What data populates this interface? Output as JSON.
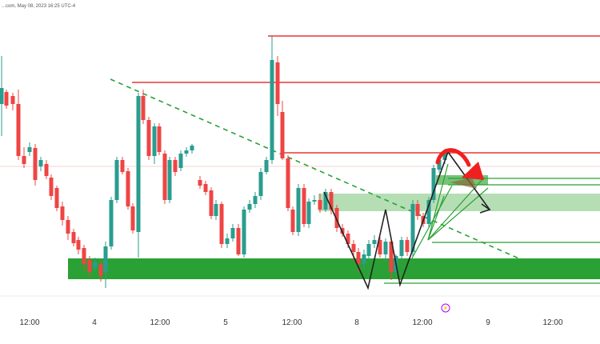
{
  "header": {
    "text": "...com, May 08, 2023 16:25 UTC-4"
  },
  "colors": {
    "up": "#2a9d8f",
    "down": "#ef4444",
    "zone": "#2aa134",
    "zone_light": "#a8d8a8",
    "resistance": "#e53935",
    "event": "#b000ff"
  },
  "event_marker": {
    "glyph": "⚡"
  },
  "chart_data": {
    "type": "candlestick",
    "x_tick_labels": [
      "12:00",
      "4",
      "12:00",
      "5",
      "12:00",
      "8",
      "12:00",
      "9",
      "12:00"
    ],
    "candles": [
      [
        2,
        130,
        110,
        70,
        170
      ],
      [
        8,
        115,
        132,
        112,
        136
      ],
      [
        16,
        120,
        130,
        116,
        138
      ],
      [
        23,
        130,
        195,
        112,
        200
      ],
      [
        30,
        195,
        205,
        184,
        210
      ],
      [
        37,
        190,
        184,
        178,
        195
      ],
      [
        44,
        185,
        225,
        180,
        232
      ],
      [
        51,
        208,
        200,
        196,
        214
      ],
      [
        58,
        205,
        220,
        200,
        224
      ],
      [
        64,
        222,
        245,
        218,
        250
      ],
      [
        71,
        235,
        260,
        232,
        264
      ],
      [
        78,
        258,
        275,
        252,
        282
      ],
      [
        85,
        275,
        292,
        270,
        300
      ],
      [
        92,
        290,
        304,
        286,
        308
      ],
      [
        98,
        300,
        312,
        296,
        318
      ],
      [
        105,
        310,
        330,
        306,
        338
      ],
      [
        112,
        325,
        340,
        320,
        346
      ],
      [
        119,
        335,
        328,
        322,
        340
      ],
      [
        126,
        330,
        345,
        326,
        352
      ],
      [
        132,
        340,
        308,
        302,
        360
      ],
      [
        139,
        308,
        250,
        246,
        312
      ],
      [
        146,
        250,
        200,
        196,
        254
      ],
      [
        153,
        200,
        215,
        196,
        218
      ],
      [
        160,
        214,
        258,
        210,
        262
      ],
      [
        166,
        258,
        288,
        254,
        292
      ],
      [
        173,
        290,
        120,
        116,
        322
      ],
      [
        179,
        120,
        150,
        112,
        155
      ],
      [
        186,
        150,
        195,
        146,
        200
      ],
      [
        193,
        195,
        158,
        154,
        205
      ],
      [
        199,
        158,
        190,
        154,
        194
      ],
      [
        206,
        192,
        250,
        188,
        255
      ],
      [
        212,
        250,
        200,
        196,
        254
      ],
      [
        219,
        200,
        215,
        196,
        220
      ],
      [
        226,
        210,
        192,
        188,
        214
      ],
      [
        233,
        192,
        188,
        184,
        196
      ],
      [
        240,
        188,
        182,
        180,
        192
      ],
      [
        250,
        225,
        232,
        220,
        236
      ],
      [
        257,
        230,
        240,
        226,
        244
      ],
      [
        264,
        238,
        270,
        234,
        274
      ],
      [
        270,
        270,
        255,
        250,
        275
      ],
      [
        277,
        255,
        305,
        252,
        310
      ],
      [
        284,
        305,
        298,
        292,
        310
      ],
      [
        291,
        298,
        285,
        280,
        302
      ],
      [
        298,
        285,
        318,
        280,
        320
      ],
      [
        305,
        318,
        262,
        258,
        322
      ],
      [
        312,
        262,
        255,
        250,
        266
      ],
      [
        319,
        255,
        245,
        240,
        260
      ],
      [
        326,
        245,
        215,
        210,
        250
      ],
      [
        333,
        215,
        200,
        196,
        218
      ],
      [
        340,
        200,
        75,
        45,
        205
      ],
      [
        347,
        78,
        130,
        70,
        145
      ],
      [
        353,
        140,
        198,
        126,
        200
      ],
      [
        360,
        198,
        260,
        194,
        264
      ],
      [
        366,
        262,
        290,
        258,
        294
      ],
      [
        373,
        290,
        235,
        230,
        295
      ],
      [
        380,
        235,
        280,
        230,
        284
      ],
      [
        386,
        280,
        252,
        248,
        285
      ],
      [
        393,
        252,
        250,
        244,
        256
      ],
      [
        400,
        250,
        262,
        242,
        266
      ],
      [
        407,
        262,
        240,
        236,
        265
      ],
      [
        414,
        240,
        262,
        236,
        268
      ],
      [
        421,
        260,
        285,
        256,
        290
      ],
      [
        428,
        285,
        292,
        280,
        296
      ],
      [
        435,
        292,
        305,
        288,
        310
      ],
      [
        442,
        305,
        315,
        300,
        325
      ],
      [
        448,
        315,
        330,
        310,
        340
      ],
      [
        455,
        330,
        318,
        312,
        338
      ],
      [
        461,
        320,
        305,
        300,
        325
      ],
      [
        468,
        305,
        300,
        294,
        310
      ],
      [
        475,
        300,
        318,
        296,
        322
      ],
      [
        482,
        318,
        302,
        298,
        326
      ],
      [
        489,
        302,
        340,
        298,
        350
      ],
      [
        495,
        340,
        320,
        318,
        345
      ],
      [
        502,
        320,
        300,
        296,
        326
      ],
      [
        509,
        300,
        315,
        296,
        320
      ],
      [
        516,
        315,
        255,
        250,
        320
      ],
      [
        522,
        255,
        270,
        250,
        275
      ],
      [
        529,
        270,
        280,
        266,
        284
      ],
      [
        536,
        280,
        250,
        246,
        284
      ],
      [
        542,
        250,
        210,
        206,
        254
      ],
      [
        549,
        212,
        200,
        196,
        216
      ],
      [
        556,
        200,
        190,
        186,
        205
      ]
    ]
  }
}
